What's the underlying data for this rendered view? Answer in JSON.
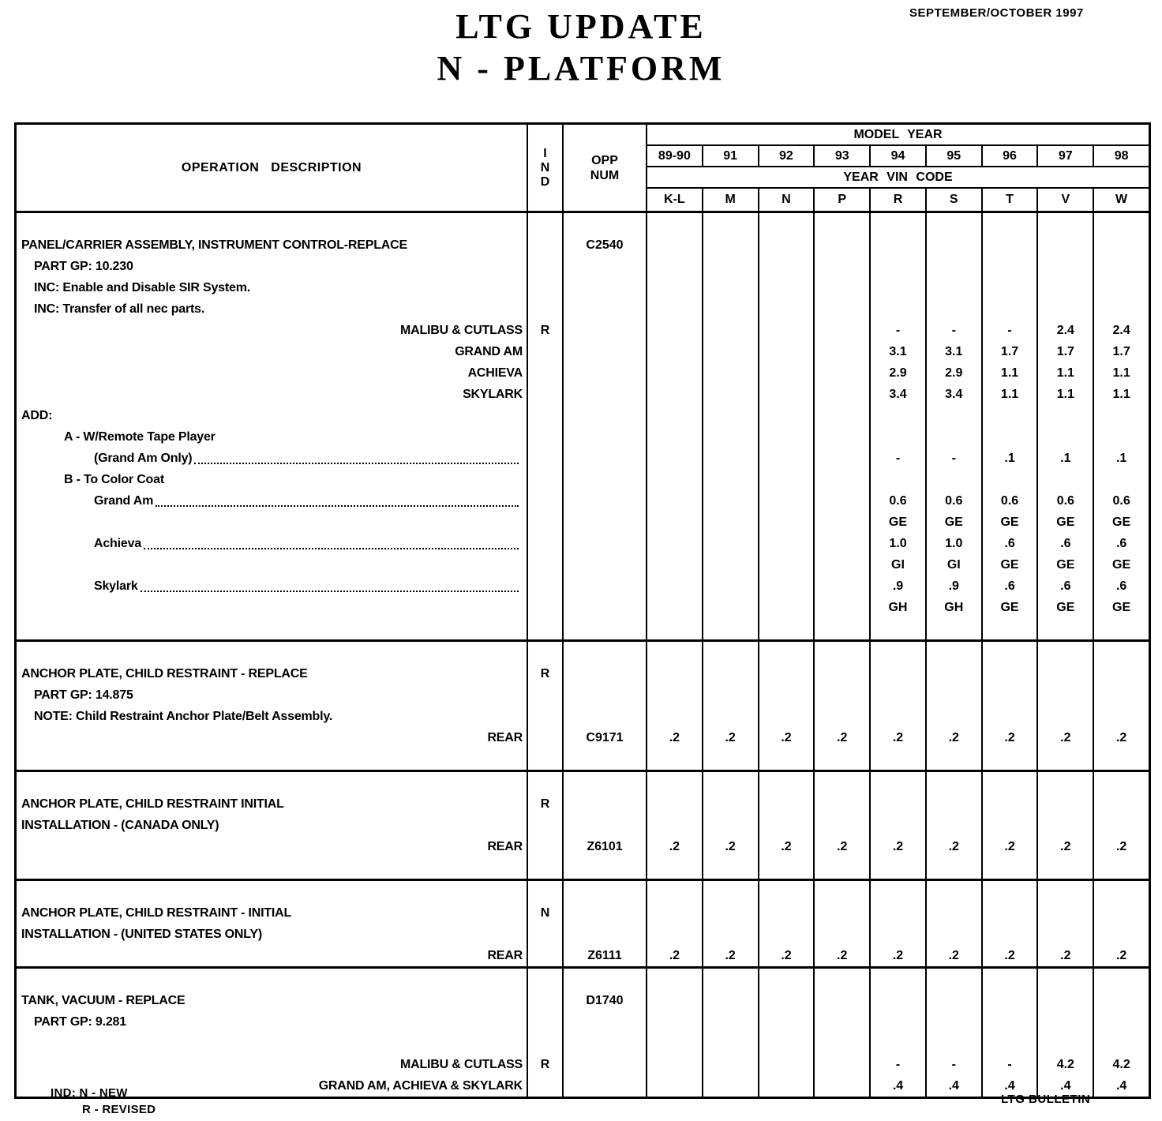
{
  "page": {
    "title_line1": "LTG  UPDATE",
    "title_line2": "N - PLATFORM",
    "date": "SEPTEMBER/OCTOBER 1997"
  },
  "footer": {
    "ind_label": "IND:",
    "ind_new": "N - NEW",
    "ind_revised": "R - REVISED",
    "bulletin": "LTG  BULLETIN"
  },
  "table": {
    "headers": {
      "operation": "OPERATION  DESCRIPTION",
      "ind": [
        "I",
        "N",
        "D"
      ],
      "opp": [
        "OPP",
        "NUM"
      ],
      "model_year": "MODEL  YEAR",
      "years": [
        "89-90",
        "91",
        "92",
        "93",
        "94",
        "95",
        "96",
        "97",
        "98"
      ],
      "vin_code": "YEAR  VIN  CODE",
      "vin_letters": [
        "K-L",
        "M",
        "N",
        "P",
        "R",
        "S",
        "T",
        "V",
        "W"
      ]
    },
    "blocks": [
      {
        "lines": [
          {
            "desc": ""
          },
          {
            "desc": "PANEL/CARRIER ASSEMBLY, INSTRUMENT CONTROL-REPLACE",
            "opp": "C2540"
          },
          {
            "desc": "PART GP: 10.230",
            "indent": 1
          },
          {
            "desc": "INC: Enable and Disable SIR System.",
            "indent": 1
          },
          {
            "desc": "INC: Transfer of all nec parts.",
            "indent": 1
          },
          {
            "desc": "MALIBU & CUTLASS",
            "align": "right",
            "ind": "R",
            "values": [
              "",
              "",
              "",
              "",
              "-",
              "-",
              "-",
              "2.4",
              "2.4"
            ]
          },
          {
            "desc": "GRAND AM",
            "align": "right",
            "values": [
              "",
              "",
              "",
              "",
              "3.1",
              "3.1",
              "1.7",
              "1.7",
              "1.7"
            ]
          },
          {
            "desc": "ACHIEVA",
            "align": "right",
            "values": [
              "",
              "",
              "",
              "",
              "2.9",
              "2.9",
              "1.1",
              "1.1",
              "1.1"
            ]
          },
          {
            "desc": "SKYLARK",
            "align": "right",
            "values": [
              "",
              "",
              "",
              "",
              "3.4",
              "3.4",
              "1.1",
              "1.1",
              "1.1"
            ]
          },
          {
            "desc": "ADD:"
          },
          {
            "desc": "A - W/Remote Tape Player",
            "indent": 2
          },
          {
            "desc": "(Grand Am Only)",
            "indent": 3,
            "leader": true,
            "values": [
              "",
              "",
              "",
              "",
              "-",
              "-",
              ".1",
              ".1",
              ".1"
            ]
          },
          {
            "desc": "B - To Color Coat",
            "indent": 2
          },
          {
            "desc": "Grand Am",
            "indent": 3,
            "leader": true,
            "values": [
              "",
              "",
              "",
              "",
              "0.6",
              "0.6",
              "0.6",
              "0.6",
              "0.6"
            ]
          },
          {
            "desc": "",
            "values": [
              "",
              "",
              "",
              "",
              "GE",
              "GE",
              "GE",
              "GE",
              "GE"
            ]
          },
          {
            "desc": "Achieva",
            "indent": 3,
            "leader": true,
            "values": [
              "",
              "",
              "",
              "",
              "1.0",
              "1.0",
              ".6",
              ".6",
              ".6"
            ]
          },
          {
            "desc": "",
            "values": [
              "",
              "",
              "",
              "",
              "GI",
              "GI",
              "GE",
              "GE",
              "GE"
            ]
          },
          {
            "desc": "Skylark",
            "indent": 3,
            "leader": true,
            "values": [
              "",
              "",
              "",
              "",
              ".9",
              ".9",
              ".6",
              ".6",
              ".6"
            ]
          },
          {
            "desc": "",
            "values": [
              "",
              "",
              "",
              "",
              "GH",
              "GH",
              "GE",
              "GE",
              "GE"
            ]
          },
          {
            "desc": ""
          }
        ]
      },
      {
        "lines": [
          {
            "desc": ""
          },
          {
            "desc": "ANCHOR PLATE, CHILD RESTRAINT - REPLACE",
            "ind": "R"
          },
          {
            "desc": "PART GP: 14.875",
            "indent": 1
          },
          {
            "desc": "NOTE: Child Restraint Anchor Plate/Belt Assembly.",
            "indent": 1
          },
          {
            "desc": "REAR",
            "align": "right",
            "opp": "C9171",
            "values": [
              ".2",
              ".2",
              ".2",
              ".2",
              ".2",
              ".2",
              ".2",
              ".2",
              ".2"
            ]
          },
          {
            "desc": ""
          }
        ]
      },
      {
        "lines": [
          {
            "desc": ""
          },
          {
            "desc": "ANCHOR PLATE, CHILD RESTRAINT INITIAL",
            "ind": "R"
          },
          {
            "desc": "INSTALLATION - (CANADA ONLY)"
          },
          {
            "desc": "REAR",
            "align": "right",
            "opp": "Z6101",
            "values": [
              ".2",
              ".2",
              ".2",
              ".2",
              ".2",
              ".2",
              ".2",
              ".2",
              ".2"
            ]
          },
          {
            "desc": ""
          }
        ]
      },
      {
        "lines": [
          {
            "desc": ""
          },
          {
            "desc": "ANCHOR PLATE, CHILD RESTRAINT - INITIAL",
            "ind": "N"
          },
          {
            "desc": "INSTALLATION - (UNITED STATES ONLY)"
          },
          {
            "desc": "REAR",
            "align": "right",
            "opp": "Z6111",
            "values": [
              ".2",
              ".2",
              ".2",
              ".2",
              ".2",
              ".2",
              ".2",
              ".2",
              ".2"
            ]
          }
        ]
      },
      {
        "lines": [
          {
            "desc": ""
          },
          {
            "desc": "TANK, VACUUM - REPLACE",
            "opp": "D1740"
          },
          {
            "desc": "PART GP: 9.281",
            "indent": 1
          },
          {
            "desc": ""
          },
          {
            "desc": "MALIBU & CUTLASS",
            "align": "right",
            "ind": "R",
            "values": [
              "",
              "",
              "",
              "",
              "-",
              "-",
              "-",
              "4.2",
              "4.2"
            ]
          },
          {
            "desc": "GRAND AM, ACHIEVA & SKYLARK",
            "align": "right",
            "values": [
              "",
              "",
              "",
              "",
              ".4",
              ".4",
              ".4",
              ".4",
              ".4"
            ]
          }
        ]
      }
    ]
  }
}
